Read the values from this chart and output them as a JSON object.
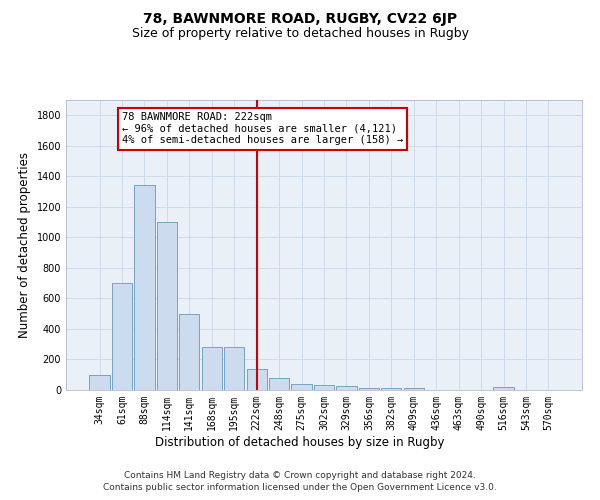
{
  "title": "78, BAWNMORE ROAD, RUGBY, CV22 6JP",
  "subtitle": "Size of property relative to detached houses in Rugby",
  "xlabel": "Distribution of detached houses by size in Rugby",
  "ylabel": "Number of detached properties",
  "footer_line1": "Contains HM Land Registry data © Crown copyright and database right 2024.",
  "footer_line2": "Contains public sector information licensed under the Open Government Licence v3.0.",
  "categories": [
    "34sqm",
    "61sqm",
    "88sqm",
    "114sqm",
    "141sqm",
    "168sqm",
    "195sqm",
    "222sqm",
    "248sqm",
    "275sqm",
    "302sqm",
    "329sqm",
    "356sqm",
    "382sqm",
    "409sqm",
    "436sqm",
    "463sqm",
    "490sqm",
    "516sqm",
    "543sqm",
    "570sqm"
  ],
  "values": [
    100,
    700,
    1340,
    1100,
    500,
    280,
    280,
    140,
    80,
    40,
    35,
    25,
    15,
    12,
    12,
    0,
    0,
    0,
    20,
    0,
    0
  ],
  "bar_color": "#ccdcee",
  "bar_edge_color": "#6699bb",
  "vline_color": "#cc0000",
  "annotation_box_text": "78 BAWNMORE ROAD: 222sqm\n← 96% of detached houses are smaller (4,121)\n4% of semi-detached houses are larger (158) →",
  "ylim": [
    0,
    1900
  ],
  "yticks": [
    0,
    200,
    400,
    600,
    800,
    1000,
    1200,
    1400,
    1600,
    1800
  ],
  "bg_color": "#ffffff",
  "grid_color": "#c8d8e8",
  "title_fontsize": 10,
  "subtitle_fontsize": 9,
  "label_fontsize": 8.5,
  "tick_fontsize": 7,
  "footer_fontsize": 6.5
}
